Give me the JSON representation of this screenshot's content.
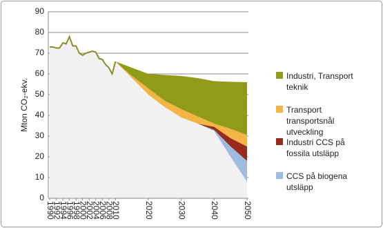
{
  "chart_data": {
    "type": "stacked_area",
    "y_label": "Mton CO₂-ekv.",
    "x": [
      1990,
      1991,
      1992,
      1993,
      1994,
      1995,
      1996,
      1997,
      1998,
      1999,
      2000,
      2001,
      2002,
      2003,
      2004,
      2005,
      2006,
      2007,
      2008,
      2009,
      2010,
      2015,
      2020,
      2025,
      2030,
      2035,
      2040,
      2045,
      2050
    ],
    "series": [
      {
        "color": "#f1f1f1",
        "values": [
          73,
          73,
          72.5,
          72.5,
          75,
          74.5,
          78,
          73.5,
          73.5,
          70,
          69,
          70,
          70.5,
          71,
          70.5,
          67.5,
          67,
          64.5,
          63,
          60,
          66,
          58,
          50,
          44,
          39,
          36,
          32.5,
          20,
          8
        ]
      },
      {
        "name": "CCS på biogena utsläpp",
        "color": "#9fbbe0",
        "values": [
          null,
          null,
          null,
          null,
          null,
          null,
          null,
          null,
          null,
          null,
          null,
          null,
          null,
          null,
          null,
          null,
          null,
          null,
          null,
          null,
          0,
          0,
          0,
          0,
          0,
          0,
          0.5,
          5,
          10
        ]
      },
      {
        "name": "Industri CCS på fossila utsläpp",
        "color": "#9a2a1c",
        "values": [
          null,
          null,
          null,
          null,
          null,
          null,
          null,
          null,
          null,
          null,
          null,
          null,
          null,
          null,
          null,
          null,
          null,
          null,
          null,
          null,
          0,
          0,
          0,
          0,
          0,
          0,
          1.5,
          4,
          7
        ]
      },
      {
        "name": "Transport transportsnål utveckling",
        "color": "#f4b545",
        "values": [
          null,
          null,
          null,
          null,
          null,
          null,
          null,
          null,
          null,
          null,
          null,
          null,
          null,
          null,
          null,
          null,
          null,
          null,
          null,
          null,
          0,
          1,
          3,
          3,
          4,
          3.5,
          1.5,
          4.5,
          5.5
        ]
      },
      {
        "name": "Industri, Transport teknik",
        "color": "#929a1a",
        "values": [
          null,
          null,
          null,
          null,
          null,
          null,
          null,
          null,
          null,
          null,
          null,
          null,
          null,
          null,
          null,
          null,
          null,
          null,
          null,
          null,
          0,
          4,
          7,
          12.5,
          16,
          18.5,
          20.5,
          22.7,
          25.5
        ]
      }
    ],
    "line": {
      "color": "#8c8c2a",
      "values": [
        73,
        73,
        72.5,
        72.5,
        75,
        74.5,
        78,
        73.5,
        73.5,
        70,
        69,
        70,
        70.5,
        71,
        70.5,
        67.5,
        67,
        64.5,
        63,
        60,
        66,
        null,
        null,
        null,
        null,
        null,
        null,
        null,
        null
      ]
    },
    "xlim": [
      1990,
      2050
    ],
    "xticks": [
      1990,
      1992,
      1994,
      1996,
      1998,
      2000,
      2002,
      2004,
      2006,
      2008,
      2010,
      2020,
      2030,
      2040,
      2050
    ],
    "ylim": [
      0,
      90
    ],
    "yticks": [
      0,
      10,
      20,
      30,
      40,
      50,
      60,
      70,
      80,
      90
    ],
    "grid": true
  }
}
